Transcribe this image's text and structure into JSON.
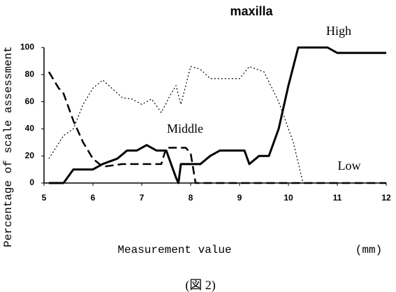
{
  "chart_data": {
    "type": "line",
    "title": "maxilla",
    "ylabel": "Percentage of scale assessment",
    "xlabel": "Measurement value",
    "xunit": "(mm)",
    "caption": "(図 2)",
    "xlim": [
      5,
      12
    ],
    "xticks": [
      5,
      6,
      7,
      8,
      9,
      10,
      11,
      12
    ],
    "ylim": [
      0,
      100
    ],
    "yticks": [
      0,
      20,
      40,
      60,
      80,
      100
    ],
    "series": [
      {
        "name": "High",
        "color": "#000000",
        "style": "solid",
        "width": 3,
        "x": [
          5.1,
          5.4,
          5.6,
          6.0,
          6.2,
          6.5,
          6.7,
          6.9,
          7.1,
          7.3,
          7.5,
          7.6,
          7.7,
          7.75,
          7.8,
          8.1,
          8.2,
          8.4,
          8.6,
          8.8,
          9.1,
          9.2,
          9.4,
          9.6,
          9.8,
          9.9,
          10.0,
          10.2,
          10.4,
          10.8,
          11.0,
          11.2,
          12.0
        ],
        "values": [
          0,
          0,
          10,
          10,
          14,
          18,
          24,
          24,
          28,
          24,
          24,
          14,
          4,
          0,
          14,
          14,
          14,
          20,
          24,
          24,
          24,
          14,
          20,
          20,
          40,
          56,
          72,
          100,
          100,
          100,
          96,
          96,
          96
        ]
      },
      {
        "name": "Middle",
        "color": "#000000",
        "style": "dashed",
        "width": 2.5,
        "x": [
          5.1,
          5.3,
          5.4,
          5.6,
          5.8,
          6.0,
          6.2,
          6.6,
          7.4,
          7.5,
          7.9,
          8.0,
          8.1,
          12.0
        ],
        "values": [
          82,
          70,
          66,
          46,
          30,
          18,
          12,
          14,
          14,
          26,
          26,
          22,
          0,
          0
        ]
      },
      {
        "name": "Low",
        "color": "#000000",
        "style": "dotted",
        "width": 1.2,
        "x": [
          5.1,
          5.4,
          5.6,
          5.8,
          6.0,
          6.2,
          6.6,
          6.8,
          7.0,
          7.2,
          7.4,
          7.6,
          7.7,
          7.8,
          8.0,
          8.2,
          8.4,
          9.0,
          9.2,
          9.5,
          9.8,
          10.1,
          10.3,
          12.0
        ],
        "values": [
          18,
          35,
          40,
          58,
          70,
          76,
          63,
          62,
          58,
          62,
          52,
          66,
          72,
          58,
          86,
          84,
          77,
          77,
          86,
          82,
          60,
          30,
          0,
          0
        ]
      }
    ]
  }
}
